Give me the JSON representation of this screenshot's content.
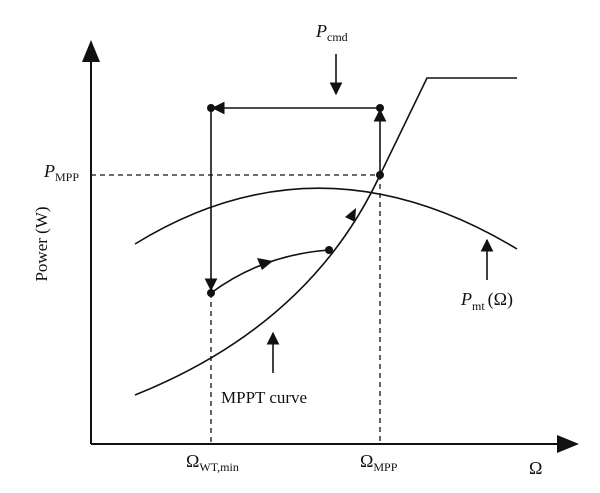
{
  "axes": {
    "y_label": "Power (W)",
    "x_label": "Ω"
  },
  "labels": {
    "p_mpp": {
      "main": "P",
      "sub": "MPP"
    },
    "p_cmd": {
      "main": "P",
      "sub": "cmd"
    },
    "omega_wt_min": {
      "main": "Ω",
      "sub": "WT,min"
    },
    "omega_mpp": {
      "main": "Ω",
      "sub": "MPP"
    },
    "p_mt": {
      "main": "P",
      "sub": "mt",
      "arg": "(Ω)"
    },
    "mppt_curve": "MPPT curve"
  },
  "colors": {
    "ink": "#111111",
    "background": "#ffffff"
  }
}
